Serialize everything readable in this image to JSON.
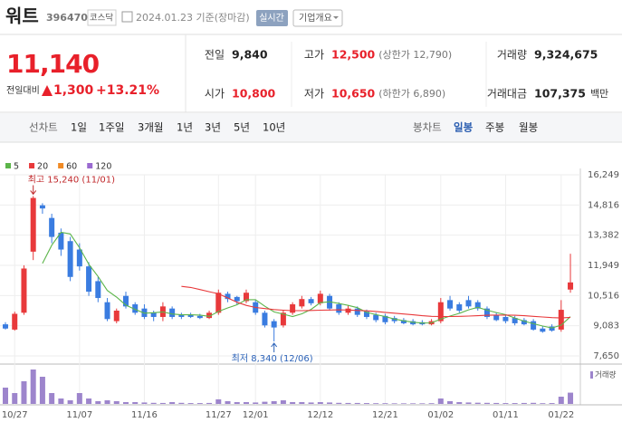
{
  "header": {
    "name": "워트",
    "code": "396470",
    "market": "코스닥",
    "date": "2024.01.23 기준(장마감)",
    "realtime": "실시간",
    "company": "기업개요"
  },
  "price": {
    "current": "11,140",
    "change_label": "전일대비",
    "change": "1,300",
    "change_pct": "+13.21%"
  },
  "stats": [
    {
      "label": "전일",
      "value": "9,840"
    },
    {
      "label": "고가",
      "value": "12,500",
      "note": "(상한가 12,790)"
    },
    {
      "label": "거래량",
      "value": "9,324,675"
    },
    {
      "label": "시가",
      "value": "10,800"
    },
    {
      "label": "저가",
      "value": "10,650",
      "note": "(하한가 6,890)"
    },
    {
      "label": "거래대금",
      "value": "107,375",
      "unit": "백만"
    }
  ],
  "tabs": {
    "line": "선차트",
    "line_periods": [
      "1일",
      "1주일",
      "3개월",
      "1년",
      "3년",
      "5년",
      "10년"
    ],
    "candle": "봉차트",
    "candle_periods": [
      "일봉",
      "주봉",
      "월봉"
    ],
    "active": "일봉"
  },
  "chart_data": {
    "type": "candlestick",
    "categories": [
      null,
      "10/27",
      null,
      null,
      null,
      null,
      null,
      null,
      "11/07",
      null,
      null,
      null,
      null,
      null,
      null,
      "11/16",
      null,
      null,
      null,
      null,
      null,
      null,
      null,
      "11/27",
      null,
      null,
      null,
      "12/01",
      null,
      null,
      null,
      null,
      null,
      null,
      "12/12",
      null,
      null,
      null,
      null,
      null,
      null,
      "12/21",
      null,
      null,
      null,
      null,
      null,
      "01/02",
      null,
      null,
      null,
      null,
      null,
      null,
      "01/11",
      null,
      null,
      null,
      null,
      null,
      "01/22",
      null
    ],
    "open": [
      9150,
      8900,
      9700,
      12600,
      14800,
      14200,
      13500,
      13100,
      12700,
      11900,
      11200,
      10200,
      9300,
      10500,
      10100,
      9900,
      9700,
      9500,
      9900,
      9600,
      9600,
      9550,
      9450,
      9700,
      10600,
      10450,
      10250,
      10200,
      9700,
      9300,
      9100,
      9700,
      10000,
      10350,
      10150,
      10500,
      10100,
      9700,
      9900,
      9750,
      9600,
      9550,
      9450,
      9350,
      9300,
      9250,
      9150,
      9300,
      10300,
      10100,
      10300,
      10200,
      9900,
      9600,
      9500,
      9450,
      9350,
      9300,
      8950,
      9050,
      8900,
      10800
    ],
    "high": [
      9250,
      9750,
      11950,
      15240,
      14900,
      14400,
      13700,
      13300,
      13000,
      12100,
      11400,
      10400,
      9900,
      10700,
      10200,
      10100,
      9800,
      10200,
      10000,
      9700,
      9700,
      9650,
      9800,
      10800,
      10700,
      10500,
      10800,
      10300,
      9800,
      9400,
      9800,
      10200,
      10500,
      10450,
      10750,
      10600,
      10200,
      10050,
      10000,
      9850,
      9700,
      9650,
      9550,
      9450,
      9400,
      9350,
      9400,
      10400,
      10500,
      10200,
      10500,
      10300,
      10000,
      9700,
      9600,
      9550,
      9450,
      9400,
      9050,
      9150,
      10300,
      12500
    ],
    "low": [
      8900,
      8850,
      9600,
      12200,
      14400,
      13000,
      12400,
      11200,
      11700,
      10500,
      10200,
      9300,
      9200,
      9900,
      9600,
      9400,
      9300,
      9300,
      9400,
      9400,
      9450,
      9400,
      9400,
      9600,
      10200,
      10100,
      10150,
      9600,
      9000,
      8340,
      9000,
      9600,
      9900,
      10050,
      10050,
      9800,
      9600,
      9600,
      9500,
      9400,
      9250,
      9150,
      9200,
      9150,
      9100,
      9100,
      9100,
      9200,
      9800,
      9700,
      9900,
      9800,
      9400,
      9300,
      9200,
      9100,
      9100,
      8850,
      8750,
      8800,
      8800,
      10650
    ],
    "close": [
      8950,
      9650,
      11800,
      15150,
      14650,
      13300,
      12700,
      11400,
      11900,
      10700,
      10400,
      9400,
      9800,
      10000,
      9700,
      9500,
      9500,
      10000,
      9500,
      9500,
      9500,
      9450,
      9700,
      10650,
      10350,
      10250,
      10650,
      9700,
      9100,
      9000,
      9700,
      10100,
      10350,
      10150,
      10600,
      9900,
      9700,
      9900,
      9600,
      9500,
      9350,
      9250,
      9300,
      9200,
      9150,
      9150,
      9300,
      10200,
      9900,
      9800,
      10000,
      9900,
      9500,
      9350,
      9300,
      9200,
      9150,
      8900,
      8800,
      8850,
      9840,
      11140
    ],
    "up_color": "#e8393b",
    "down_color": "#3a7ce0",
    "ylim": [
      7650,
      16249
    ],
    "yticks": [
      {
        "value": 16249,
        "label": "16,249"
      },
      {
        "value": 14816,
        "label": "14,816"
      },
      {
        "value": 13382,
        "label": "13,382"
      },
      {
        "value": 11949,
        "label": "11,949"
      },
      {
        "value": 10516,
        "label": "10,516"
      },
      {
        "value": 9083,
        "label": "9,083"
      },
      {
        "value": 7650,
        "label": "7,650"
      }
    ],
    "grid": true,
    "series": [
      {
        "name": "5",
        "color": "#5cb54a",
        "values": [
          null,
          null,
          null,
          null,
          12040,
          12910,
          13520,
          13440,
          12790,
          12000,
          11420,
          10760,
          10440,
          10060,
          9860,
          9680,
          9700,
          9740,
          9640,
          9600,
          9600,
          9590,
          9530,
          9760,
          9930,
          10080,
          10320,
          10320,
          10010,
          9740,
          9630,
          9520,
          9650,
          9860,
          10180,
          10220,
          10140,
          10050,
          9940,
          9720,
          9610,
          9520,
          9400,
          9320,
          9250,
          9210,
          9220,
          9400,
          9540,
          9670,
          9840,
          9960,
          9820,
          9710,
          9610,
          9450,
          9300,
          9180,
          9070,
          8980,
          9110,
          9510
        ]
      },
      {
        "name": "20",
        "color": "#e8393b",
        "values": [
          null,
          null,
          null,
          null,
          null,
          null,
          null,
          null,
          null,
          null,
          null,
          null,
          null,
          null,
          null,
          null,
          null,
          null,
          null,
          10950,
          10900,
          10800,
          10700,
          10600,
          10400,
          10200,
          10050,
          9950,
          9900,
          9850,
          9820,
          9800,
          9800,
          9810,
          9820,
          9830,
          9840,
          9830,
          9810,
          9790,
          9760,
          9720,
          9680,
          9640,
          9600,
          9560,
          9530,
          9520,
          9520,
          9530,
          9540,
          9560,
          9580,
          9590,
          9590,
          9580,
          9560,
          9530,
          9500,
          9470,
          9450,
          9480
        ]
      }
    ],
    "legend_extra": [
      {
        "name": "60",
        "color": "#f08a24"
      },
      {
        "name": "120",
        "color": "#9a6ad0"
      }
    ],
    "annotations": {
      "high": "최고 15,240 (11/01)",
      "low": "최저 8,340 (12/06)"
    },
    "volume": {
      "label": "거래량",
      "color": "#9d85cc",
      "values": [
        13500000,
        9000000,
        18800000,
        28500000,
        22500000,
        9000000,
        4500000,
        3000000,
        9000000,
        4500000,
        2300000,
        3000000,
        2300000,
        1500000,
        1500000,
        1200000,
        900000,
        800000,
        1500000,
        900000,
        700000,
        700000,
        800000,
        3800000,
        2300000,
        1500000,
        1500000,
        1200000,
        1800000,
        2300000,
        3000000,
        1500000,
        1500000,
        1200000,
        1500000,
        1200000,
        900000,
        800000,
        800000,
        700000,
        600000,
        600000,
        500000,
        500000,
        500000,
        500000,
        600000,
        4500000,
        2300000,
        1500000,
        1200000,
        1000000,
        900000,
        800000,
        700000,
        700000,
        800000,
        900000,
        600000,
        700000,
        6000000,
        9324675
      ]
    }
  }
}
